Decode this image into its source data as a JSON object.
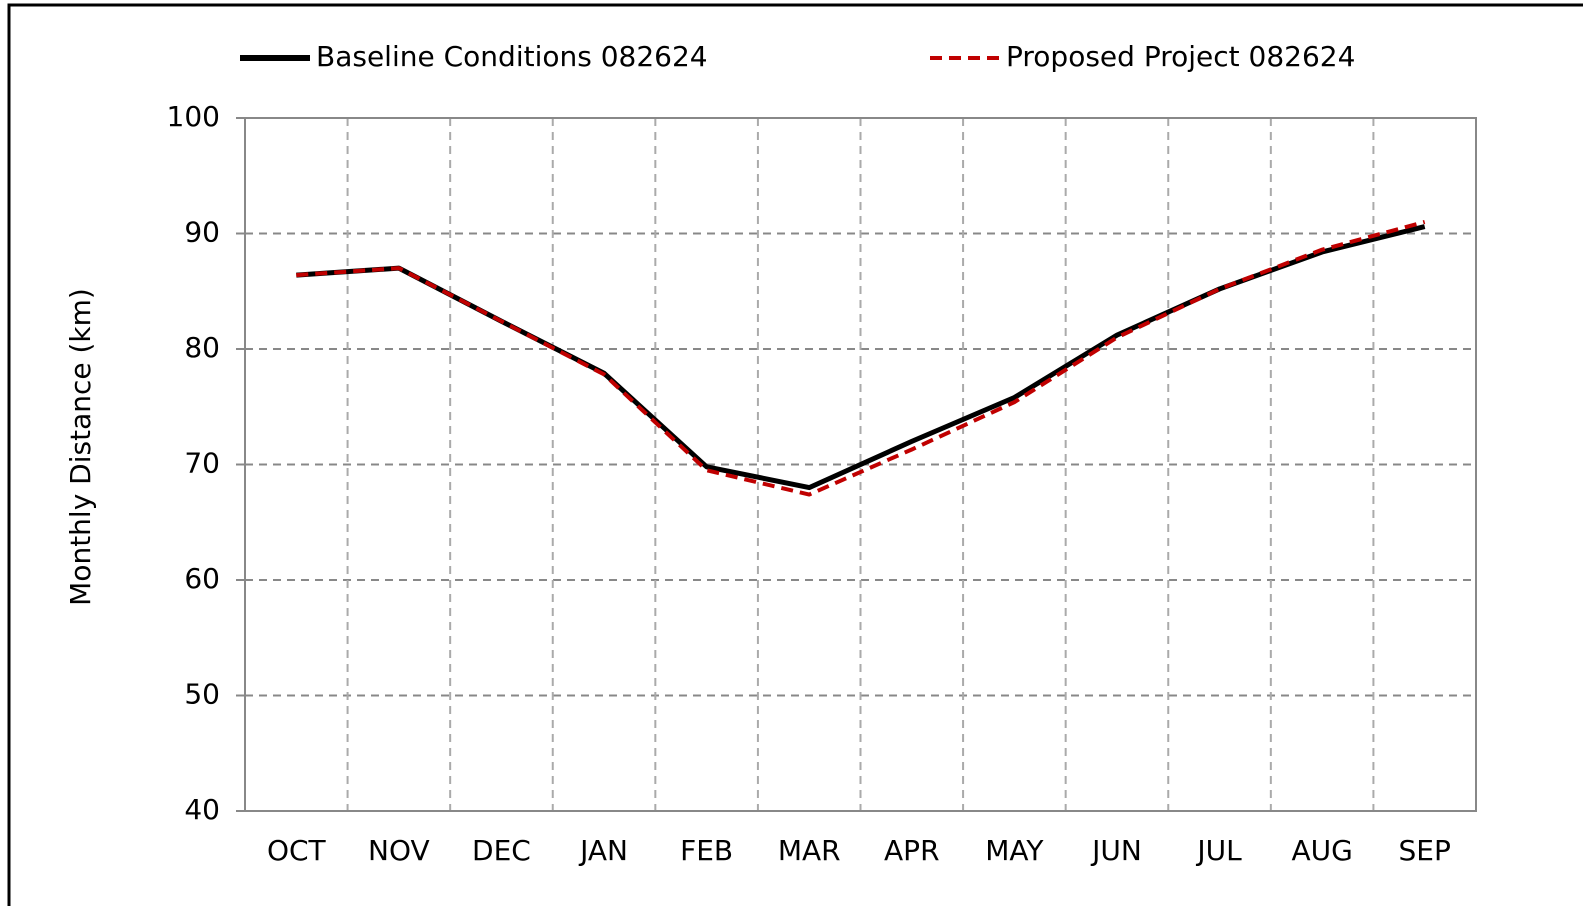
{
  "chart_data": {
    "type": "line",
    "categories": [
      "OCT",
      "NOV",
      "DEC",
      "JAN",
      "FEB",
      "MAR",
      "APR",
      "MAY",
      "JUN",
      "JUL",
      "AUG",
      "SEP"
    ],
    "series": [
      {
        "name": "Baseline Conditions 082624",
        "color": "#000000",
        "dashed": false,
        "values": [
          86.4,
          87.0,
          82.4,
          77.9,
          69.8,
          68.0,
          72.0,
          75.8,
          81.2,
          85.2,
          88.4,
          90.6
        ]
      },
      {
        "name": "Proposed Project 082624",
        "color": "#c00000",
        "dashed": true,
        "values": [
          86.4,
          87.0,
          82.4,
          77.8,
          69.5,
          67.4,
          71.3,
          75.4,
          81.0,
          85.2,
          88.6,
          91.0
        ]
      }
    ],
    "y_label": "Monthly Distance (km)",
    "ylim": [
      40,
      100
    ],
    "yticks": [
      40,
      50,
      60,
      70,
      80,
      90,
      100
    ],
    "grid": true,
    "legend": "top"
  }
}
